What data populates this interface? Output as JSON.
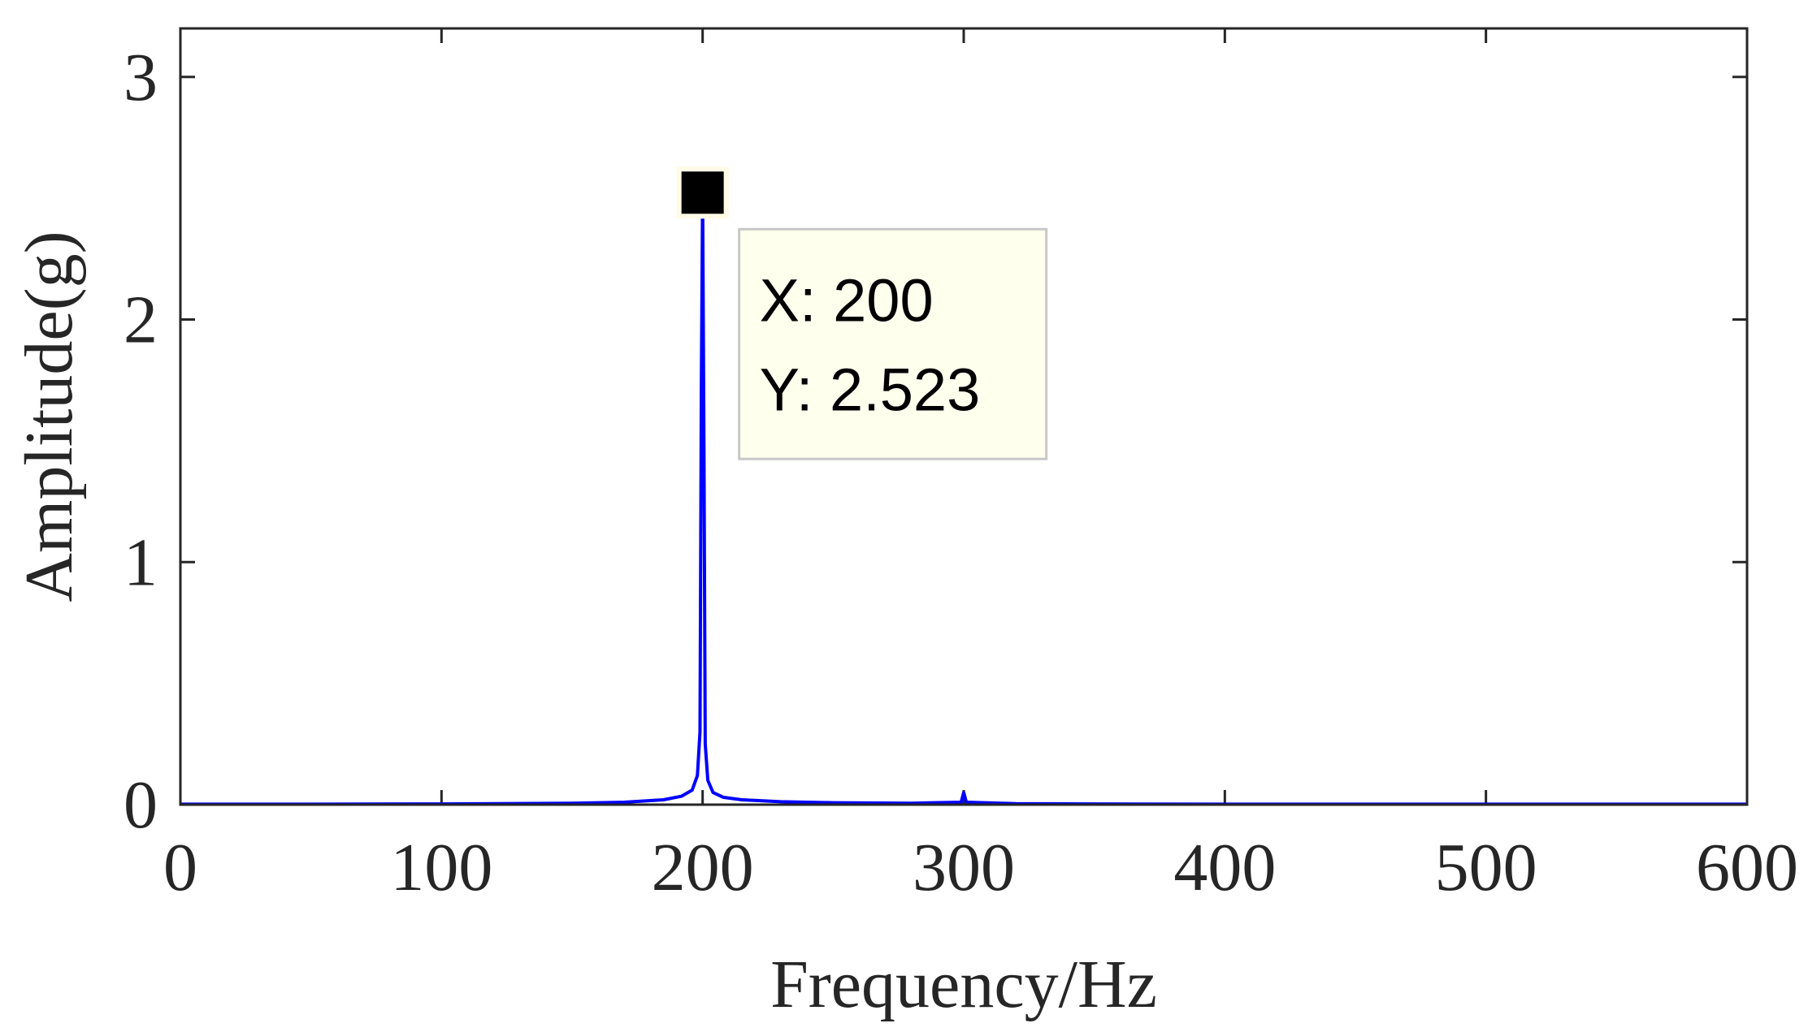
{
  "chart_data": {
    "type": "line",
    "title": "",
    "xlabel": "Frequency/Hz",
    "ylabel": "Amplitude(g)",
    "xlim": [
      0,
      600
    ],
    "ylim": [
      0,
      3.2
    ],
    "xticks": [
      0,
      100,
      200,
      300,
      400,
      500,
      600
    ],
    "yticks": [
      0,
      1,
      2,
      3
    ],
    "xtick_labels": [
      "0",
      "100",
      "200",
      "300",
      "400",
      "500",
      "600"
    ],
    "ytick_labels": [
      "0",
      "1",
      "2",
      "3"
    ],
    "grid": false,
    "series": [
      {
        "color": "#0000ff",
        "x": [
          0,
          50,
          100,
          150,
          170,
          185,
          192,
          196,
          198,
          199,
          199.5,
          200,
          200.5,
          201,
          202,
          204,
          208,
          215,
          230,
          250,
          280,
          299,
          300,
          301,
          320,
          350,
          400,
          450,
          500,
          550,
          600
        ],
        "y": [
          0.002,
          0.002,
          0.003,
          0.006,
          0.01,
          0.02,
          0.035,
          0.06,
          0.12,
          0.3,
          1.7,
          2.523,
          1.5,
          0.25,
          0.1,
          0.05,
          0.03,
          0.02,
          0.012,
          0.008,
          0.006,
          0.01,
          0.05,
          0.01,
          0.004,
          0.003,
          0.002,
          0.002,
          0.002,
          0.002,
          0.002
        ]
      }
    ],
    "datatip": {
      "x": 200,
      "y": 2.523,
      "x_label": "X: 200",
      "y_label": "Y: 2.523"
    }
  }
}
